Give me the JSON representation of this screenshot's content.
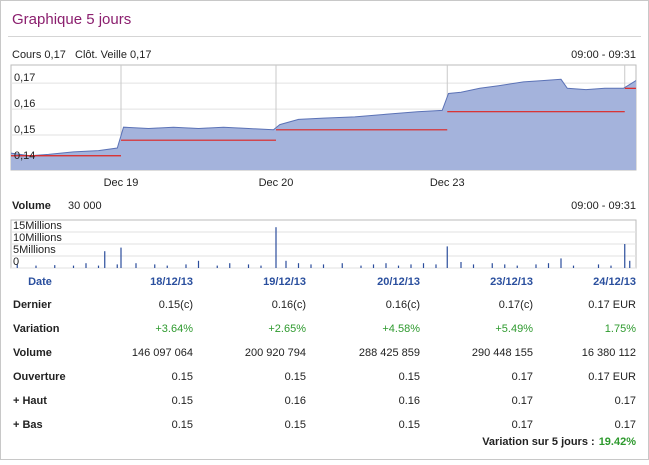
{
  "header": {
    "title": "Graphique 5 jours",
    "price": "Cours 0,17",
    "prev_close": "Clôt. Veille 0,17",
    "time_range": "09:00 - 09:31"
  },
  "volume_header": {
    "title": "Volume",
    "value": "30 000",
    "time_range": "09:00 - 09:31"
  },
  "chart_data": [
    {
      "type": "area",
      "color": "#a4b3dc",
      "line_color": "#5b72b6",
      "reference_color": "#e0231f",
      "grid": true,
      "x": [
        0,
        3,
        6,
        10,
        14,
        17,
        18,
        22,
        26,
        30,
        34,
        38,
        42,
        43,
        46,
        50,
        55,
        60,
        65,
        69,
        70,
        72,
        75,
        78,
        82,
        85,
        88,
        89,
        92,
        95,
        98,
        99,
        100
      ],
      "values": [
        0.143,
        0.142,
        0.1425,
        0.1435,
        0.144,
        0.145,
        0.153,
        0.1525,
        0.153,
        0.1525,
        0.153,
        0.1525,
        0.152,
        0.154,
        0.156,
        0.1565,
        0.157,
        0.158,
        0.159,
        0.1595,
        0.166,
        0.1665,
        0.168,
        0.169,
        0.1705,
        0.171,
        0.1715,
        0.168,
        0.1675,
        0.168,
        0.168,
        0.1695,
        0.171
      ],
      "xlim": [
        0,
        100
      ],
      "xticks": [
        {
          "value": 17.6,
          "label": "Dec 19"
        },
        {
          "value": 42.4,
          "label": "Dec 20"
        },
        {
          "value": 69.8,
          "label": "Dec 23"
        }
      ],
      "day_breaks": [
        17.6,
        42.4,
        69.8,
        98.2
      ],
      "reference_lines": [
        {
          "x": [
            0,
            17.6
          ],
          "value": 0.142
        },
        {
          "x": [
            17.6,
            42.4
          ],
          "value": 0.148
        },
        {
          "x": [
            42.4,
            69.8
          ],
          "value": 0.152
        },
        {
          "x": [
            69.8,
            98.2
          ],
          "value": 0.159
        },
        {
          "x": [
            98.2,
            100
          ],
          "value": 0.168
        }
      ],
      "ylim": [
        0.1365,
        0.177
      ],
      "yticks": [
        {
          "value": 0.14,
          "label": "0,14"
        },
        {
          "value": 0.15,
          "label": "0,15"
        },
        {
          "value": 0.16,
          "label": "0,16"
        },
        {
          "value": 0.17,
          "label": "0,17"
        }
      ]
    },
    {
      "type": "bar",
      "color": "#2b4d9c",
      "grid": true,
      "x": [
        1,
        4,
        7,
        10,
        12,
        14,
        15,
        17,
        17.6,
        20,
        23,
        25,
        28,
        30,
        33,
        35,
        38,
        40,
        42.4,
        44,
        46,
        48,
        50,
        53,
        56,
        58,
        60,
        62,
        64,
        66,
        68,
        69.8,
        72,
        74,
        77,
        79,
        81,
        84,
        86,
        88,
        90,
        94,
        96,
        98.2,
        99
      ],
      "values": [
        1500000,
        1000000,
        1200000,
        1000000,
        2000000,
        1000000,
        7000000,
        1500000,
        8500000,
        2000000,
        1500000,
        1000000,
        1500000,
        3000000,
        1000000,
        2000000,
        1500000,
        1000000,
        17000000,
        3000000,
        2000000,
        1500000,
        1500000,
        2000000,
        1000000,
        1500000,
        2000000,
        1000000,
        1500000,
        2000000,
        1500000,
        9000000,
        2500000,
        1500000,
        2000000,
        1500000,
        1000000,
        1500000,
        2000000,
        4000000,
        1000000,
        1500000,
        1000000,
        10000000,
        3000000
      ],
      "xlim": [
        0,
        100
      ],
      "ylim": [
        0,
        20000000
      ],
      "yticks": [
        {
          "value": 0,
          "label": "0"
        },
        {
          "value": 5000000,
          "label": "5Millions"
        },
        {
          "value": 10000000,
          "label": "10Millions"
        },
        {
          "value": 15000000,
          "label": "15Millions"
        }
      ]
    }
  ],
  "table": {
    "header": [
      "Date",
      "18/12/13",
      "19/12/13",
      "20/12/13",
      "23/12/13",
      "24/12/13"
    ],
    "rows": [
      {
        "label": "Dernier",
        "cells": [
          "0.15(c)",
          "0.16(c)",
          "0.16(c)",
          "0.17(c)",
          "0.17 EUR"
        ]
      },
      {
        "label": "Variation",
        "color": "#2e9a2e",
        "cells": [
          "+3.64%",
          "+2.65%",
          "+4.58%",
          "+5.49%",
          "1.75%"
        ]
      },
      {
        "label": "Volume",
        "cells": [
          "146 097 064",
          "200 920 794",
          "288 425 859",
          "290 448 155",
          "16 380 112"
        ]
      },
      {
        "label": "Ouverture",
        "cells": [
          "0.15",
          "0.15",
          "0.15",
          "0.17",
          "0.17 EUR"
        ]
      },
      {
        "label": "+ Haut",
        "cells": [
          "0.15",
          "0.16",
          "0.16",
          "0.17",
          "0.17"
        ]
      },
      {
        "label": "+ Bas",
        "cells": [
          "0.15",
          "0.15",
          "0.15",
          "0.17",
          "0.17"
        ]
      }
    ],
    "footer": {
      "label": "Variation sur 5 jours :",
      "value": "19.42%",
      "color": "#2e9a2e"
    }
  }
}
